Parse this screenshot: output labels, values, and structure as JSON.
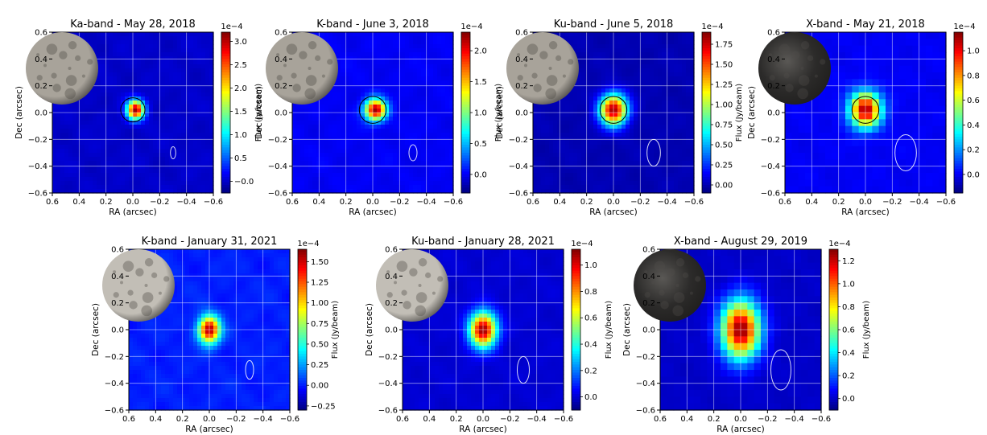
{
  "figure": {
    "colormap": "jet",
    "moon_texture": {
      "light": "#a8a39a",
      "dark": "#3a3836"
    }
  },
  "chart_data": [
    {
      "type": "heatmap",
      "title": "Ka-band - May 28, 2018",
      "xlabel": "RA (arcsec)",
      "ylabel": "Dec (arcsec)",
      "xlim": [
        0.6,
        -0.6
      ],
      "ylim": [
        -0.6,
        0.6
      ],
      "x_ticks": [
        0.6,
        0.4,
        0.2,
        0.0,
        -0.2,
        -0.4,
        -0.6
      ],
      "x_tick_labels": [
        "0.6",
        "0.4",
        "0.2",
        "0.0",
        "−0.2",
        "−0.4",
        "−0.6"
      ],
      "y_ticks": [
        -0.6,
        -0.4,
        -0.2,
        0.0,
        0.2,
        0.4,
        0.6
      ],
      "y_tick_labels": [
        "−0.6",
        "−0.4",
        "−0.2",
        "0.0",
        "0.2",
        "0.4",
        "0.6"
      ],
      "grid": true,
      "colorbar": {
        "label": "Flux (Jy/beam)",
        "multiplier": "1e−4",
        "vmin": -0.25,
        "vmax": 3.2,
        "ticks": [
          0.0,
          0.5,
          1.0,
          1.5,
          2.0,
          2.5,
          3.0
        ],
        "tick_labels": [
          "−0.0",
          "0.5",
          "1.0",
          "1.5",
          "2.0",
          "2.5",
          "3.0"
        ]
      },
      "source": {
        "x": -0.02,
        "y": 0.02,
        "sx": 0.045,
        "sy": 0.05,
        "peak": 3.1
      },
      "disk_circle": {
        "x": 0.0,
        "y": 0.02,
        "r": 0.09
      },
      "beam": {
        "x": -0.3,
        "y": -0.3,
        "w": 0.04,
        "h": 0.09
      },
      "noise_amplitude": 0.12,
      "moon": {
        "tone": "medium"
      }
    },
    {
      "type": "heatmap",
      "title": "K-band - June 3, 2018",
      "xlabel": "RA (arcsec)",
      "ylabel": "Dec (arcsec)",
      "xlim": [
        0.6,
        -0.6
      ],
      "ylim": [
        -0.6,
        0.6
      ],
      "x_ticks": [
        0.6,
        0.4,
        0.2,
        0.0,
        -0.2,
        -0.4,
        -0.6
      ],
      "x_tick_labels": [
        "0.6",
        "0.4",
        "0.2",
        "0.0",
        "−0.2",
        "−0.4",
        "−0.6"
      ],
      "y_ticks": [
        -0.6,
        -0.4,
        -0.2,
        0.0,
        0.2,
        0.4,
        0.6
      ],
      "y_tick_labels": [
        "−0.6",
        "−0.4",
        "−0.2",
        "0.0",
        "0.2",
        "0.4",
        "0.6"
      ],
      "grid": true,
      "colorbar": {
        "label": "Flux (Jy/beam)",
        "multiplier": "1e−4",
        "vmin": -0.3,
        "vmax": 2.3,
        "ticks": [
          0.0,
          0.5,
          1.0,
          1.5,
          2.0
        ],
        "tick_labels": [
          "0.0",
          "0.5",
          "1.0",
          "1.5",
          "2.0"
        ]
      },
      "source": {
        "x": -0.02,
        "y": 0.02,
        "sx": 0.055,
        "sy": 0.055,
        "peak": 2.25
      },
      "disk_circle": {
        "x": 0.0,
        "y": 0.02,
        "r": 0.1
      },
      "beam": {
        "x": -0.3,
        "y": -0.3,
        "w": 0.06,
        "h": 0.12
      },
      "noise_amplitude": 0.12,
      "moon": {
        "tone": "medium"
      }
    },
    {
      "type": "heatmap",
      "title": "Ku-band - June 5, 2018",
      "xlabel": "RA (arcsec)",
      "ylabel": "Dec (arcsec)",
      "xlim": [
        0.6,
        -0.6
      ],
      "ylim": [
        -0.6,
        0.6
      ],
      "x_ticks": [
        0.6,
        0.4,
        0.2,
        0.0,
        -0.2,
        -0.4,
        -0.6
      ],
      "x_tick_labels": [
        "0.6",
        "0.4",
        "0.2",
        "0.0",
        "−0.2",
        "−0.4",
        "−0.6"
      ],
      "y_ticks": [
        -0.6,
        -0.4,
        -0.2,
        0.0,
        0.2,
        0.4,
        0.6
      ],
      "y_tick_labels": [
        "−0.6",
        "−0.4",
        "−0.2",
        "0.0",
        "0.2",
        "0.4",
        "0.6"
      ],
      "grid": true,
      "colorbar": {
        "label": "Flux (Jy/beam)",
        "multiplier": "1e−4",
        "vmin": -0.1,
        "vmax": 1.9,
        "ticks": [
          0.0,
          0.25,
          0.5,
          0.75,
          1.0,
          1.25,
          1.5,
          1.75
        ],
        "tick_labels": [
          "0.00",
          "0.25",
          "0.50",
          "0.75",
          "1.00",
          "1.25",
          "1.50",
          "1.75"
        ]
      },
      "source": {
        "x": 0.0,
        "y": 0.02,
        "sx": 0.07,
        "sy": 0.08,
        "peak": 1.85
      },
      "disk_circle": {
        "x": 0.0,
        "y": 0.02,
        "r": 0.1
      },
      "beam": {
        "x": -0.3,
        "y": -0.3,
        "w": 0.1,
        "h": 0.2
      },
      "noise_amplitude": 0.1,
      "moon": {
        "tone": "medium"
      }
    },
    {
      "type": "heatmap",
      "title": "X-band - May 21, 2018",
      "xlabel": "RA (arcsec)",
      "ylabel": "Dec (arcsec)",
      "xlim": [
        0.6,
        -0.6
      ],
      "ylim": [
        -0.6,
        0.6
      ],
      "x_ticks": [
        0.6,
        0.4,
        0.2,
        0.0,
        -0.2,
        -0.4,
        -0.6
      ],
      "x_tick_labels": [
        "0.6",
        "0.4",
        "0.2",
        "0.0",
        "−0.2",
        "−0.4",
        "−0.6"
      ],
      "y_ticks": [
        -0.6,
        -0.4,
        -0.2,
        0.0,
        0.2,
        0.4,
        0.6
      ],
      "y_tick_labels": [
        "−0.6",
        "−0.4",
        "−0.2",
        "0.0",
        "0.2",
        "0.4",
        "0.6"
      ],
      "grid": true,
      "colorbar": {
        "label": "Flux (Jy/beam)",
        "multiplier": "1e−4",
        "vmin": -0.15,
        "vmax": 1.15,
        "ticks": [
          0.0,
          0.2,
          0.4,
          0.6,
          0.8,
          1.0
        ],
        "tick_labels": [
          "0.0",
          "0.2",
          "0.4",
          "0.6",
          "0.8",
          "1.0"
        ]
      },
      "source": {
        "x": 0.0,
        "y": 0.02,
        "sx": 0.08,
        "sy": 0.09,
        "peak": 1.1
      },
      "disk_circle": {
        "x": 0.0,
        "y": 0.02,
        "r": 0.1
      },
      "beam": {
        "x": -0.3,
        "y": -0.3,
        "w": 0.16,
        "h": 0.27
      },
      "noise_amplitude": 0.1,
      "moon": {
        "tone": "dark"
      }
    },
    {
      "type": "heatmap",
      "title": "K-band - January 31, 2021",
      "xlabel": "RA (arcsec)",
      "ylabel": "Dec (arcsec)",
      "xlim": [
        0.6,
        -0.6
      ],
      "ylim": [
        -0.6,
        0.6
      ],
      "x_ticks": [
        0.6,
        0.4,
        0.2,
        0.0,
        -0.2,
        -0.4,
        -0.6
      ],
      "x_tick_labels": [
        "0.6",
        "0.4",
        "0.2",
        "0.0",
        "−0.2",
        "−0.4",
        "−0.6"
      ],
      "y_ticks": [
        -0.6,
        -0.4,
        -0.2,
        0.0,
        0.2,
        0.4,
        0.6
      ],
      "y_tick_labels": [
        "−0.6",
        "−0.4",
        "−0.2",
        "0.0",
        "0.2",
        "0.4",
        "0.6"
      ],
      "grid": true,
      "colorbar": {
        "label": "Flux (Jy/beam)",
        "multiplier": "1e−4",
        "vmin": -0.3,
        "vmax": 1.65,
        "ticks": [
          -0.25,
          0.0,
          0.25,
          0.5,
          0.75,
          1.0,
          1.25,
          1.5
        ],
        "tick_labels": [
          "−0.25",
          "0.00",
          "0.25",
          "0.50",
          "0.75",
          "1.00",
          "1.25",
          "1.50"
        ]
      },
      "source": {
        "x": 0.0,
        "y": 0.0,
        "sx": 0.055,
        "sy": 0.07,
        "peak": 1.6
      },
      "disk_circle": null,
      "beam": {
        "x": -0.3,
        "y": -0.3,
        "w": 0.06,
        "h": 0.14
      },
      "noise_amplitude": 0.15,
      "moon": {
        "tone": "light"
      }
    },
    {
      "type": "heatmap",
      "title": "Ku-band - January 28, 2021",
      "xlabel": "RA (arcsec)",
      "ylabel": "Dec (arcsec)",
      "xlim": [
        0.6,
        -0.6
      ],
      "ylim": [
        -0.6,
        0.6
      ],
      "x_ticks": [
        0.6,
        0.4,
        0.2,
        0.0,
        -0.2,
        -0.4,
        -0.6
      ],
      "x_tick_labels": [
        "0.6",
        "0.4",
        "0.2",
        "0.0",
        "−0.2",
        "−0.4",
        "−0.6"
      ],
      "y_ticks": [
        -0.6,
        -0.4,
        -0.2,
        0.0,
        0.2,
        0.4,
        0.6
      ],
      "y_tick_labels": [
        "−0.6",
        "−0.4",
        "−0.2",
        "0.0",
        "0.2",
        "0.4",
        "0.6"
      ],
      "grid": true,
      "colorbar": {
        "label": "Flux (Jy/beam)",
        "multiplier": "1e−4",
        "vmin": -0.1,
        "vmax": 1.12,
        "ticks": [
          0.0,
          0.2,
          0.4,
          0.6,
          0.8,
          1.0
        ],
        "tick_labels": [
          "0.0",
          "0.2",
          "0.4",
          "0.6",
          "0.8",
          "1.0"
        ]
      },
      "source": {
        "x": 0.0,
        "y": 0.0,
        "sx": 0.07,
        "sy": 0.09,
        "peak": 1.1
      },
      "disk_circle": null,
      "beam": {
        "x": -0.3,
        "y": -0.3,
        "w": 0.09,
        "h": 0.2
      },
      "noise_amplitude": 0.1,
      "moon": {
        "tone": "light"
      }
    },
    {
      "type": "heatmap",
      "title": "X-band - August 29, 2019",
      "xlabel": "RA (arcsec)",
      "ylabel": "Dec (arcsec)",
      "xlim": [
        0.6,
        -0.6
      ],
      "ylim": [
        -0.6,
        0.6
      ],
      "x_ticks": [
        0.6,
        0.4,
        0.2,
        0.0,
        -0.2,
        -0.4,
        -0.6
      ],
      "x_tick_labels": [
        "0.6",
        "0.4",
        "0.2",
        "0.0",
        "−0.2",
        "−0.4",
        "−0.6"
      ],
      "y_ticks": [
        -0.6,
        -0.4,
        -0.2,
        0.0,
        0.2,
        0.4,
        0.6
      ],
      "y_tick_labels": [
        "−0.6",
        "−0.4",
        "−0.2",
        "0.0",
        "0.2",
        "0.4",
        "0.6"
      ],
      "grid": true,
      "colorbar": {
        "label": "Flux (Jy/beam)",
        "multiplier": "1e−4",
        "vmin": -0.1,
        "vmax": 1.3,
        "ticks": [
          0.0,
          0.2,
          0.4,
          0.6,
          0.8,
          1.0,
          1.2
        ],
        "tick_labels": [
          "0.0",
          "0.2",
          "0.4",
          "0.6",
          "0.8",
          "1.0",
          "1.2"
        ]
      },
      "source": {
        "x": 0.0,
        "y": 0.0,
        "sx": 0.1,
        "sy": 0.15,
        "peak": 1.28
      },
      "disk_circle": null,
      "beam": {
        "x": -0.3,
        "y": -0.3,
        "w": 0.15,
        "h": 0.3
      },
      "noise_amplitude": 0.08,
      "moon": {
        "tone": "dark"
      }
    }
  ]
}
